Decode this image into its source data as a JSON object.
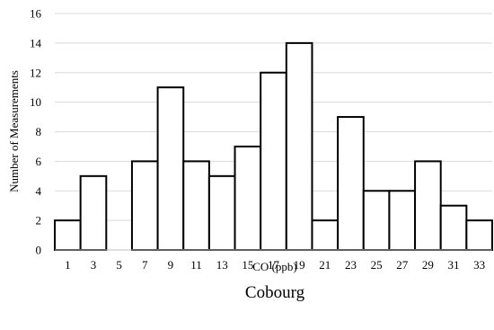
{
  "chart_data": {
    "type": "bar",
    "categories": [
      "1",
      "3",
      "5",
      "7",
      "9",
      "11",
      "13",
      "15",
      "17",
      "19",
      "21",
      "23",
      "25",
      "27",
      "29",
      "31",
      "33"
    ],
    "values": [
      2,
      5,
      0,
      6,
      11,
      6,
      5,
      7,
      12,
      14,
      2,
      9,
      4,
      4,
      6,
      3,
      2
    ],
    "title": "Cobourg",
    "xlabel": "CO (ppb)",
    "ylabel": "Number of Measurements",
    "ylim": [
      0,
      16
    ],
    "yticks": [
      "0",
      "2",
      "4",
      "6",
      "8",
      "10",
      "12",
      "14",
      "16"
    ],
    "grid": true,
    "legend": "none",
    "colors": {
      "bar_fill": "#ffffff",
      "bar_stroke": "#000000",
      "grid": "#d9d9d9",
      "axis": "#bfbfbf"
    }
  }
}
